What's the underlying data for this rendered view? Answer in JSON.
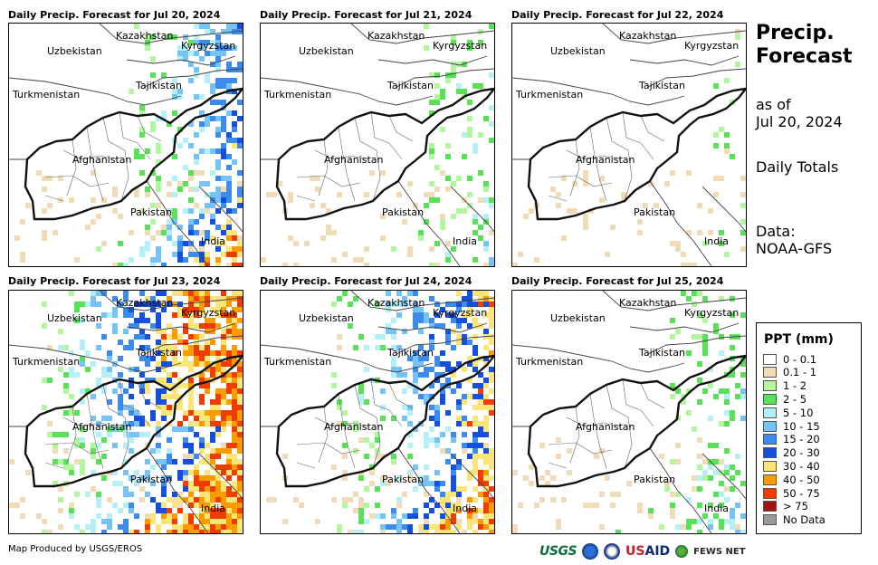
{
  "panels": [
    {
      "title": "Daily Precip. Forecast for Jul 20, 2024",
      "intensity": 0.8,
      "east": 0.55
    },
    {
      "title": "Daily Precip. Forecast for Jul 21, 2024",
      "intensity": 0.45,
      "east": 0.4
    },
    {
      "title": "Daily Precip. Forecast for Jul 22, 2024",
      "intensity": 0.25,
      "east": 0.3
    },
    {
      "title": "Daily Precip. Forecast for Jul 23, 2024",
      "intensity": 1.0,
      "east": 0.9
    },
    {
      "title": "Daily Precip. Forecast for Jul 24, 2024",
      "intensity": 0.85,
      "east": 0.75
    },
    {
      "title": "Daily Precip. Forecast for Jul 25, 2024",
      "intensity": 0.45,
      "east": 0.45
    }
  ],
  "countries": {
    "kazakhstan": "Kazakhstan",
    "kyrgyzstan": "Kyrgyzstan",
    "uzbekistan": "Uzbekistan",
    "tajikistan": "Tajikistan",
    "turkmenistan": "Turkmenistan",
    "afghanistan": "Afghanistan",
    "pakistan": "Pakistan",
    "india": "India"
  },
  "side": {
    "title_line1": "Precip.",
    "title_line2": "Forecast",
    "asof_line1": "as of",
    "asof_line2": "Jul 20, 2024",
    "totals": "Daily Totals",
    "data_line1": "Data:",
    "data_line2": "NOAA-GFS"
  },
  "legend": {
    "title": "PPT (mm)",
    "items": [
      {
        "label": "0 - 0.1",
        "color": "#ffffff"
      },
      {
        "label": "0.1 - 1",
        "color": "#f0dcb8"
      },
      {
        "label": "1 - 2",
        "color": "#b4f5a0"
      },
      {
        "label": "2 - 5",
        "color": "#5ae15a"
      },
      {
        "label": "5 - 10",
        "color": "#b4f0f5"
      },
      {
        "label": "10 - 15",
        "color": "#78c3f5"
      },
      {
        "label": "15 - 20",
        "color": "#3c8ced"
      },
      {
        "label": "20 - 30",
        "color": "#1450dc"
      },
      {
        "label": "30 - 40",
        "color": "#fae678"
      },
      {
        "label": "40 - 50",
        "color": "#fa9b00"
      },
      {
        "label": "50 - 75",
        "color": "#f03c00"
      },
      {
        "label": "> 75",
        "color": "#a01414"
      },
      {
        "label": "No Data",
        "color": "#999999"
      }
    ]
  },
  "credit": "Map Produced by USGS/EROS",
  "logos": {
    "usgs": "USGS",
    "usaid_a": "US",
    "usaid_b": "AID",
    "fews": "FEWS NET"
  }
}
